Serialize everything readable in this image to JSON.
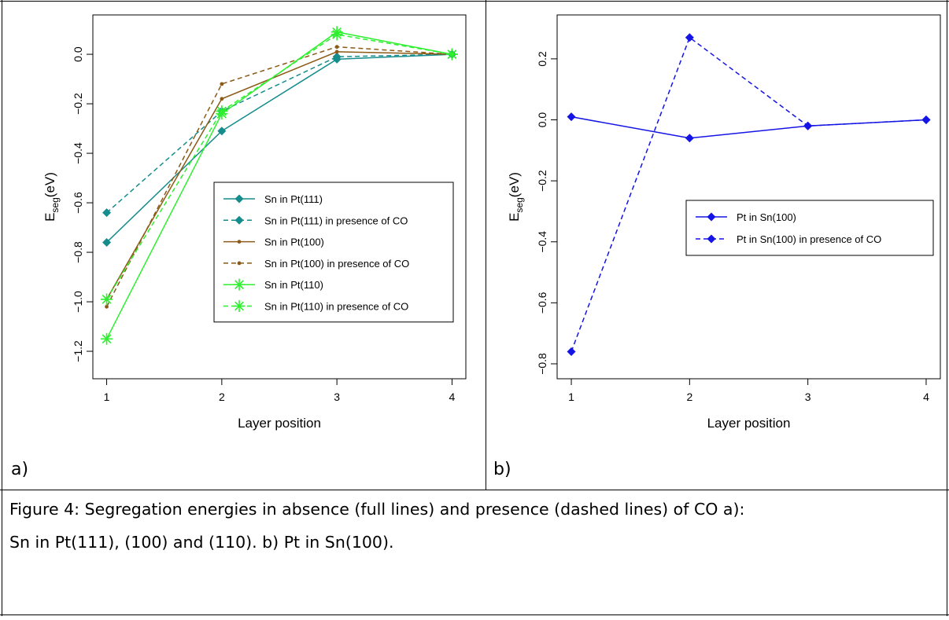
{
  "chart_data": [
    {
      "type": "line",
      "label": "a)",
      "x_label": "Layer position",
      "y_label": {
        "main": "E",
        "sub": "seg",
        "unit": "(eV)"
      },
      "x": [
        1,
        2,
        3,
        4
      ],
      "xlim": [
        0.88,
        4.12
      ],
      "xticks": [
        1,
        2,
        3,
        4
      ],
      "ylim": [
        -1.311,
        0.159
      ],
      "yticks": [
        {
          "value": 0,
          "label": "0.0"
        },
        {
          "value": -0.2,
          "label": "−0.2"
        },
        {
          "value": -0.4,
          "label": "−0.4"
        },
        {
          "value": -0.6,
          "label": "−0.6"
        },
        {
          "value": -0.8,
          "label": "−0.8"
        },
        {
          "value": -1.0,
          "label": "−1.0"
        },
        {
          "value": -1.2,
          "label": "−1.2"
        }
      ],
      "legend": "right",
      "series": [
        {
          "name": "Sn in Pt(111)",
          "color": "#168c8c",
          "linestyle": "solid",
          "marker": "diamond",
          "values": [
            -0.76,
            -0.31,
            -0.02,
            0
          ]
        },
        {
          "name": "Sn in Pt(111) in presence of CO",
          "color": "#168c8c",
          "linestyle": "dashed",
          "marker": "diamond",
          "values": [
            -0.64,
            -0.23,
            -0.01,
            0
          ]
        },
        {
          "name": "Sn in Pt(100)",
          "color": "#8b5a16",
          "linestyle": "solid",
          "marker": "dot",
          "values": [
            -0.99,
            -0.18,
            0.01,
            0
          ]
        },
        {
          "name": "Sn in Pt(100) in presence of CO",
          "color": "#8b5a16",
          "linestyle": "dashed",
          "marker": "dot",
          "values": [
            -1.02,
            -0.12,
            0.03,
            0
          ]
        },
        {
          "name": "Sn in Pt(110)",
          "color": "#2ef02e",
          "linestyle": "solid",
          "marker": "asterisk",
          "values": [
            -1.15,
            -0.24,
            0.09,
            0
          ]
        },
        {
          "name": "Sn in Pt(110) in presence of CO",
          "color": "#2ef02e",
          "linestyle": "dashed",
          "marker": "asterisk",
          "values": [
            -0.99,
            -0.23,
            0.08,
            0
          ]
        }
      ]
    },
    {
      "type": "line",
      "label": "b)",
      "x_label": "Layer position",
      "y_label": {
        "main": "E",
        "sub": "seg",
        "unit": "(eV)"
      },
      "x": [
        1,
        2,
        3,
        4
      ],
      "xlim": [
        0.88,
        4.12
      ],
      "xticks": [
        1,
        2,
        3,
        4
      ],
      "ylim": [
        -0.849,
        0.344
      ],
      "yticks": [
        {
          "value": 0.2,
          "label": "0.2"
        },
        {
          "value": 0,
          "label": "0.0"
        },
        {
          "value": -0.2,
          "label": "−0.2"
        },
        {
          "value": -0.4,
          "label": "−0.4"
        },
        {
          "value": -0.6,
          "label": "−0.6"
        },
        {
          "value": -0.8,
          "label": "−0.8"
        }
      ],
      "legend": "right",
      "series": [
        {
          "name": "Pt in Sn(100)",
          "color": "#1414e6",
          "linestyle": "solid",
          "marker": "diamond",
          "values": [
            0.01,
            -0.06,
            -0.02,
            0
          ]
        },
        {
          "name": "Pt in Sn(100) in presence of CO",
          "color": "#1414e6",
          "linestyle": "dashed",
          "marker": "diamond",
          "values": [
            -0.76,
            0.27,
            -0.02,
            0
          ]
        }
      ]
    }
  ],
  "caption": [
    "Figure 4: Segregation energies in absence (full lines) and presence (dashed lines) of CO a):",
    "Sn in Pt(111), (100) and (110). b) Pt in Sn(100)."
  ]
}
